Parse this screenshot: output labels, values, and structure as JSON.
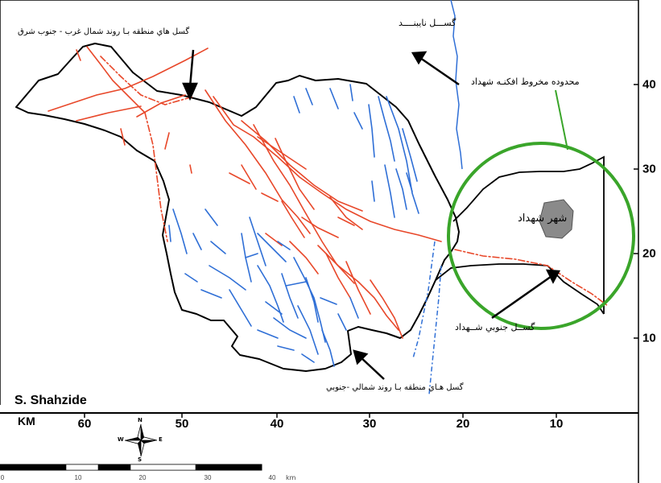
{
  "map": {
    "author": "S. Shahzide",
    "labels": {
      "nw_se_faults": "گسل هاي منطقه بـا روند شمال غرب - جنوب شرق",
      "nayband_fault": "گســـل نايبنــــد",
      "shahdad_fan_area": "محدوده مخروط افكنـه شهداد",
      "shahdad_city": "شهر شهداد",
      "south_shahdad_fault": "گســل جنوبي شــهداد",
      "ns_faults": "گسل هـاي منطقه بـا روند شمالي -جنوبي"
    },
    "x_axis": {
      "unit": "KM",
      "ticks": [
        "60",
        "50",
        "40",
        "30",
        "20",
        "10"
      ]
    },
    "y_axis": {
      "ticks": [
        "40",
        "30",
        "20",
        "10"
      ]
    },
    "scale_bar": {
      "unit": "km",
      "labels": [
        "0",
        "10",
        "20",
        "30",
        "40"
      ]
    },
    "compass": {
      "n": "N",
      "s": "S",
      "e": "E",
      "w": "W",
      "icon": "compass-rose-icon"
    },
    "colors": {
      "nw_se_fault": "#e8482a",
      "ns_fault": "#2f6fd6",
      "fan_circle": "#3aa52a",
      "city": "#8a8a8a",
      "boundary": "#000000"
    }
  }
}
